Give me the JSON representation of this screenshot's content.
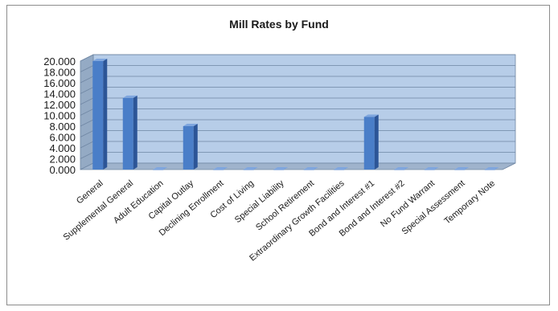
{
  "chart_data": {
    "type": "bar",
    "title": "Mill Rates by Fund",
    "xlabel": "",
    "ylabel": "",
    "categories": [
      "General",
      "Supplemental General",
      "Adult Education",
      "Capital Outlay",
      "Declining Enrollment",
      "Cost of Living",
      "Special Liability",
      "School Retirement",
      "Extraordinary Growth Facilities",
      "Bond and Interest #1",
      "Bond and Interest #2",
      "No Fund Warrant",
      "Special Assessment",
      "Temporary Note"
    ],
    "values": [
      20.0,
      13.2,
      0,
      8.0,
      0,
      0,
      0,
      0,
      0,
      9.7,
      0,
      0,
      0,
      0
    ],
    "ylim": [
      0,
      20
    ],
    "yticks": [
      "0.000",
      "2.000",
      "4.000",
      "6.000",
      "8.000",
      "10.000",
      "12.000",
      "14.000",
      "16.000",
      "18.000",
      "20.000"
    ],
    "grid": true,
    "legend": "none",
    "style": "3d-column",
    "colors": {
      "bar_front": "#4a7ec8",
      "bar_side": "#2c5597",
      "bar_top": "#7fa6de",
      "plot_back": "#b7cde8",
      "plot_floor": "#9fb3cc",
      "plot_wall": "#94aac4",
      "grid": "#6f86a3"
    }
  }
}
